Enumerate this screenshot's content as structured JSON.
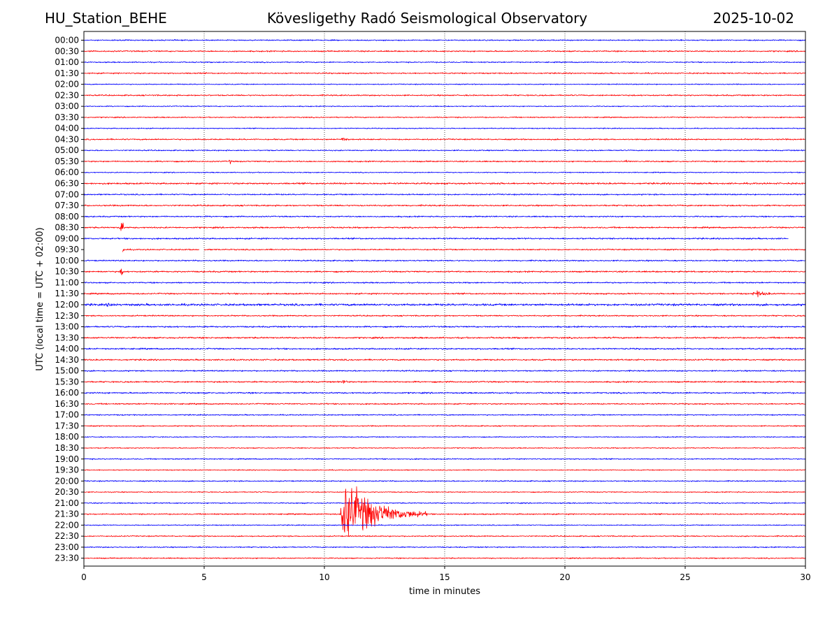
{
  "header": {
    "station": "HU_Station_BEHE",
    "observatory": "Kövesligethy Radó Seismological Observatory",
    "date": "2025-10-02"
  },
  "colors": {
    "even_trace": "#0000ff",
    "odd_trace": "#ff0000",
    "grid": "#000000"
  },
  "chart_data": {
    "type": "line",
    "title": "Kövesligethy Radó Seismological Observatory",
    "xlabel": "time in minutes",
    "ylabel": "UTC (local time = UTC + 02:00)",
    "xlim": [
      0,
      30
    ],
    "x_ticks": [
      "0",
      "5",
      "10",
      "15",
      "20",
      "25",
      "30"
    ],
    "grid": "vertical dotted lines at each x tick",
    "rows": [
      "00:00",
      "00:30",
      "01:00",
      "01:30",
      "02:00",
      "02:30",
      "03:00",
      "03:30",
      "04:00",
      "04:30",
      "05:00",
      "05:30",
      "06:00",
      "06:30",
      "07:00",
      "07:30",
      "08:00",
      "08:30",
      "09:00",
      "09:30",
      "10:00",
      "10:30",
      "11:00",
      "11:30",
      "12:00",
      "12:30",
      "13:00",
      "13:30",
      "14:00",
      "14:30",
      "15:00",
      "15:30",
      "16:00",
      "16:30",
      "17:00",
      "17:30",
      "18:00",
      "18:30",
      "19:00",
      "19:30",
      "20:00",
      "20:30",
      "21:00",
      "21:30",
      "22:00",
      "22:30",
      "23:00",
      "23:30"
    ],
    "row_amplitude": [
      0.7,
      0.8,
      0.7,
      0.8,
      0.6,
      0.8,
      0.6,
      0.7,
      0.6,
      0.8,
      0.7,
      0.8,
      0.6,
      1.0,
      0.8,
      0.9,
      0.8,
      0.9,
      0.9,
      0.8,
      0.8,
      0.9,
      0.8,
      0.9,
      1.3,
      0.8,
      0.9,
      1.0,
      0.9,
      0.9,
      0.8,
      0.9,
      0.9,
      0.8,
      0.7,
      0.7,
      0.6,
      0.6,
      0.7,
      0.6,
      0.7,
      0.6,
      0.7,
      0.8,
      0.6,
      0.7,
      0.7,
      0.7
    ],
    "events": [
      {
        "row": "04:30",
        "minute": 10.8,
        "amplitude": 6,
        "duration": 0.5
      },
      {
        "row": "05:30",
        "minute": 6.1,
        "amplitude": 5,
        "duration": 0.15
      },
      {
        "row": "05:30",
        "minute": 22.6,
        "amplitude": 5,
        "duration": 0.15
      },
      {
        "row": "06:30",
        "minute": 17.0,
        "amplitude": 3,
        "duration": 2.5
      },
      {
        "row": "08:30",
        "minute": 1.6,
        "amplitude": 20,
        "duration": 0.1
      },
      {
        "row": "09:30",
        "minute": 1.6,
        "amplitude": 8,
        "duration": 0.2
      },
      {
        "row": "10:30",
        "minute": 1.6,
        "amplitude": 10,
        "duration": 0.1
      },
      {
        "row": "11:30",
        "minute": 27.9,
        "amplitude": 7,
        "duration": 1.5
      },
      {
        "row": "12:00",
        "minute": 1.0,
        "amplitude": 4,
        "duration": 2.0
      },
      {
        "row": "15:30",
        "minute": 10.8,
        "amplitude": 6,
        "duration": 0.4
      },
      {
        "row": "21:30",
        "minute": 10.8,
        "amplitude": 70,
        "duration": 3.5
      }
    ],
    "gaps": [
      {
        "row": "09:00",
        "start_minute": 29.3,
        "end_minute": 30.0
      },
      {
        "row": "09:30",
        "start_minute": 0.0,
        "end_minute": 1.6
      },
      {
        "row": "09:30",
        "start_minute": 4.8,
        "end_minute": 5.0
      }
    ]
  }
}
